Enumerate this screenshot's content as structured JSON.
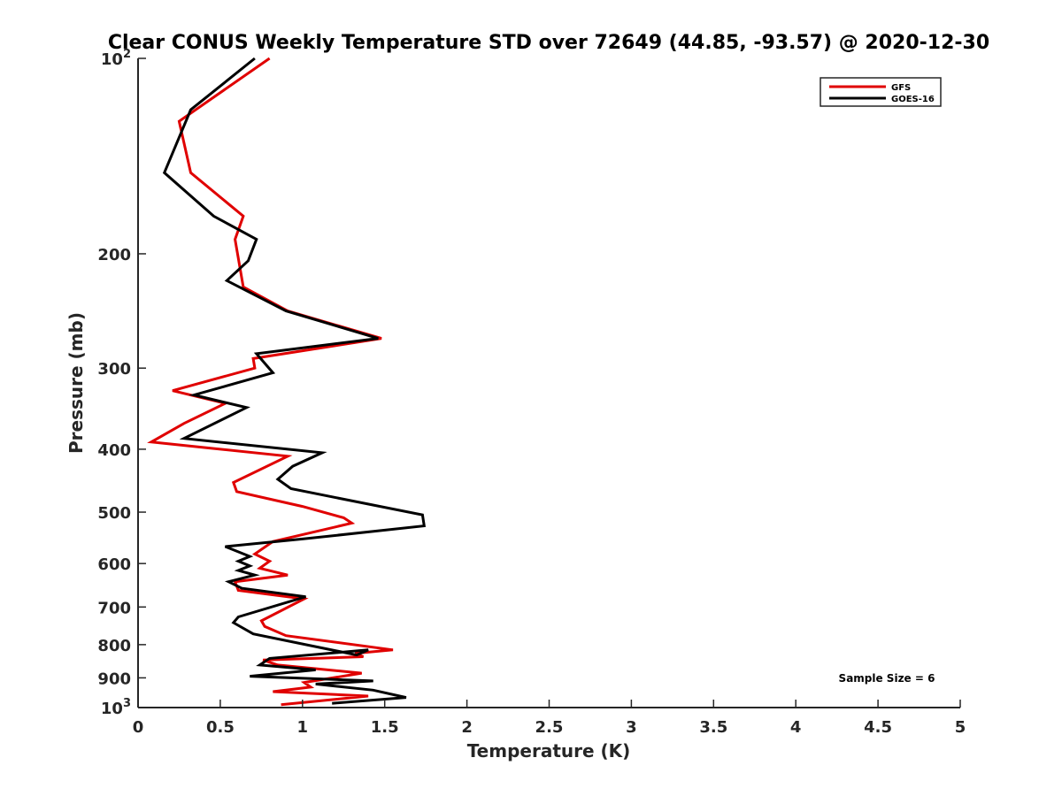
{
  "chart_data": {
    "type": "line",
    "title": "Clear CONUS Weekly Temperature STD over 72649 (44.85, -93.57) @ 2020-12-30",
    "xlabel": "Temperature (K)",
    "ylabel": "Pressure (mb)",
    "xlim": [
      0,
      5
    ],
    "ylim": [
      100,
      1000
    ],
    "y_scale": "log",
    "y_reversed": true,
    "grid": false,
    "legend_position": "top-right",
    "x_ticks": [
      "0",
      "0.5",
      "1",
      "1.5",
      "2",
      "2.5",
      "3",
      "3.5",
      "4",
      "4.5",
      "5"
    ],
    "y_ticks": [
      {
        "value": 100,
        "base": "10",
        "exp": "2"
      },
      {
        "value": 200,
        "label": "200"
      },
      {
        "value": 300,
        "label": "300"
      },
      {
        "value": 400,
        "label": "400"
      },
      {
        "value": 500,
        "label": "500"
      },
      {
        "value": 600,
        "label": "600"
      },
      {
        "value": 700,
        "label": "700"
      },
      {
        "value": 800,
        "label": "800"
      },
      {
        "value": 900,
        "label": "900"
      },
      {
        "value": 1000,
        "base": "10",
        "exp": "3"
      }
    ],
    "annotation": "Sample Size = 6",
    "series": [
      {
        "name": "GFS",
        "color": "#e00000",
        "points": [
          [
            0.8,
            100
          ],
          [
            0.25,
            125
          ],
          [
            0.32,
            150
          ],
          [
            0.64,
            175
          ],
          [
            0.59,
            190
          ],
          [
            0.64,
            225
          ],
          [
            0.91,
            245
          ],
          [
            1.48,
            270
          ],
          [
            0.7,
            290
          ],
          [
            0.71,
            300
          ],
          [
            0.21,
            325
          ],
          [
            0.53,
            340
          ],
          [
            0.28,
            365
          ],
          [
            0.08,
            390
          ],
          [
            0.91,
            410
          ],
          [
            0.58,
            450
          ],
          [
            0.6,
            465
          ],
          [
            1.0,
            490
          ],
          [
            1.25,
            510
          ],
          [
            1.3,
            520
          ],
          [
            0.82,
            555
          ],
          [
            0.71,
            580
          ],
          [
            0.8,
            595
          ],
          [
            0.74,
            610
          ],
          [
            0.91,
            625
          ],
          [
            0.59,
            640
          ],
          [
            0.61,
            660
          ],
          [
            1.01,
            680
          ],
          [
            0.75,
            735
          ],
          [
            0.77,
            750
          ],
          [
            0.9,
            775
          ],
          [
            1.55,
            815
          ],
          [
            1.32,
            825
          ],
          [
            1.37,
            835
          ],
          [
            0.76,
            845
          ],
          [
            0.85,
            860
          ],
          [
            1.36,
            885
          ],
          [
            1.01,
            915
          ],
          [
            1.05,
            930
          ],
          [
            0.82,
            945
          ],
          [
            1.4,
            960
          ],
          [
            0.87,
            990
          ]
        ]
      },
      {
        "name": "GOES-16",
        "color": "#000000",
        "points": [
          [
            0.71,
            100
          ],
          [
            0.32,
            120
          ],
          [
            0.16,
            150
          ],
          [
            0.46,
            175
          ],
          [
            0.72,
            190
          ],
          [
            0.67,
            205
          ],
          [
            0.54,
            220
          ],
          [
            0.9,
            245
          ],
          [
            1.46,
            270
          ],
          [
            0.72,
            285
          ],
          [
            0.82,
            305
          ],
          [
            0.34,
            330
          ],
          [
            0.66,
            345
          ],
          [
            0.28,
            385
          ],
          [
            1.12,
            405
          ],
          [
            0.94,
            425
          ],
          [
            0.85,
            445
          ],
          [
            0.93,
            460
          ],
          [
            1.73,
            505
          ],
          [
            1.74,
            525
          ],
          [
            1.0,
            550
          ],
          [
            0.53,
            565
          ],
          [
            0.68,
            585
          ],
          [
            0.61,
            595
          ],
          [
            0.68,
            605
          ],
          [
            0.61,
            615
          ],
          [
            0.71,
            625
          ],
          [
            0.55,
            640
          ],
          [
            0.63,
            655
          ],
          [
            1.02,
            675
          ],
          [
            0.61,
            725
          ],
          [
            0.58,
            740
          ],
          [
            0.7,
            770
          ],
          [
            1.33,
            830
          ],
          [
            1.4,
            815
          ],
          [
            0.8,
            840
          ],
          [
            0.74,
            860
          ],
          [
            1.08,
            875
          ],
          [
            0.68,
            895
          ],
          [
            1.43,
            910
          ],
          [
            1.08,
            920
          ],
          [
            1.43,
            940
          ],
          [
            1.63,
            965
          ],
          [
            1.18,
            985
          ]
        ]
      }
    ]
  }
}
